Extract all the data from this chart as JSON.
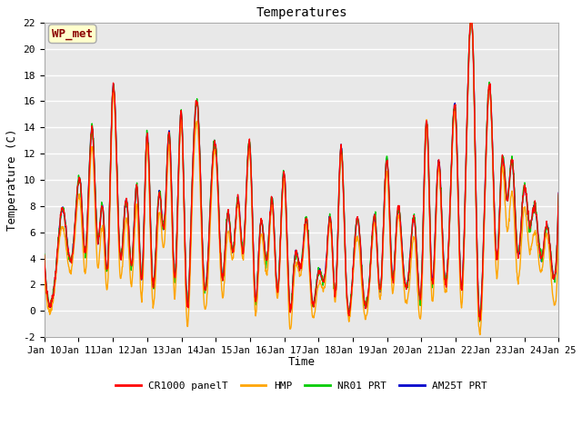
{
  "title": "Temperatures",
  "xlabel": "Time",
  "ylabel": "Temperature (C)",
  "ylim": [
    -2,
    22
  ],
  "yticks": [
    -2,
    0,
    2,
    4,
    6,
    8,
    10,
    12,
    14,
    16,
    18,
    20,
    22
  ],
  "x_labels": [
    "Jan 10",
    "Jan 11",
    "Jan 12",
    "Jan 13",
    "Jan 14",
    "Jan 15",
    "Jan 16",
    "Jan 17",
    "Jan 18",
    "Jan 19",
    "Jan 20",
    "Jan 21",
    "Jan 22",
    "Jan 23",
    "Jan 24",
    "Jan 25"
  ],
  "annotation_text": "WP_met",
  "annotation_color": "#8B0000",
  "annotation_bg": "#FFFFCC",
  "bg_color": "#E8E8E8",
  "series_colors": [
    "#FF0000",
    "#FFA500",
    "#00CC00",
    "#0000CC"
  ],
  "series_labels": [
    "CR1000 panelT",
    "HMP",
    "NR01 PRT",
    "AM25T PRT"
  ],
  "line_width": 1.0,
  "figsize": [
    6.4,
    4.8
  ],
  "dpi": 100,
  "base_keypoints_x": [
    0,
    0.15,
    0.35,
    0.55,
    0.7,
    0.85,
    1.05,
    1.2,
    1.4,
    1.55,
    1.7,
    1.85,
    2.0,
    2.2,
    2.4,
    2.55,
    2.7,
    2.85,
    3.0,
    3.15,
    3.35,
    3.5,
    3.65,
    3.8,
    4.0,
    4.15,
    4.3,
    4.5,
    4.65,
    4.8,
    5.0,
    5.2,
    5.35,
    5.5,
    5.65,
    5.8,
    6.0,
    6.15,
    6.3,
    6.5,
    6.65,
    6.8,
    7.0,
    7.15,
    7.3,
    7.5,
    7.65,
    7.8,
    8.0,
    8.2,
    8.35,
    8.5,
    8.65,
    8.8,
    9.0,
    9.15,
    9.3,
    9.5,
    9.65,
    9.8,
    10.0,
    10.15,
    10.3,
    10.5,
    10.65,
    10.8,
    11.0,
    11.15,
    11.3,
    11.5,
    11.65,
    11.8,
    12.0,
    12.15,
    12.3,
    12.5,
    12.65,
    12.8,
    13.0,
    13.2,
    13.35,
    13.5,
    13.65,
    13.8,
    14.0,
    14.15,
    14.3,
    14.5,
    14.65,
    14.8,
    15.0
  ],
  "base_keypoints_y": [
    4.0,
    0.5,
    3.5,
    7.8,
    4.5,
    5.0,
    9.8,
    4.5,
    14.0,
    5.5,
    8.0,
    3.5,
    17.0,
    4.5,
    8.5,
    3.5,
    9.5,
    2.5,
    13.5,
    2.5,
    9.0,
    6.5,
    13.5,
    2.5,
    15.0,
    1.0,
    8.5,
    14.5,
    2.5,
    5.5,
    12.5,
    2.5,
    7.5,
    4.5,
    8.5,
    4.5,
    12.5,
    1.0,
    6.5,
    4.0,
    8.5,
    1.5,
    10.5,
    0.5,
    4.0,
    3.5,
    7.0,
    1.0,
    3.0,
    3.0,
    7.0,
    1.5,
    12.5,
    2.5,
    3.0,
    7.0,
    1.5,
    3.0,
    7.0,
    1.5,
    11.5,
    2.5,
    7.5,
    2.5,
    3.5,
    7.0,
    2.0,
    14.5,
    2.5,
    11.5,
    3.5,
    5.5,
    15.0,
    2.0,
    11.5,
    20.5,
    1.5,
    4.5,
    17.0,
    4.0,
    11.5,
    8.5,
    11.5,
    4.5,
    9.5,
    6.5,
    8.0,
    4.0,
    6.5,
    3.5,
    9.0
  ],
  "hmp_offset_x": [
    0,
    0.15,
    0.35,
    0.55,
    0.7,
    0.85,
    1.05,
    1.2,
    1.4,
    1.55,
    1.7,
    1.85,
    2.0,
    2.2,
    2.4,
    2.55,
    2.7,
    2.85,
    3.0,
    3.15,
    3.35,
    3.5,
    3.65,
    3.8,
    4.0,
    4.15,
    4.3,
    4.5,
    4.65,
    4.8,
    5.0,
    5.2,
    5.35,
    5.5,
    5.65,
    5.8,
    6.0,
    6.15,
    6.3,
    6.5,
    6.65,
    6.8,
    7.0,
    7.15,
    7.3,
    7.5,
    7.65,
    7.8,
    8.0,
    8.2,
    8.35,
    8.5,
    8.65,
    8.8,
    9.0,
    9.15,
    9.3,
    9.5,
    9.65,
    9.8,
    10.0,
    10.15,
    10.3,
    10.5,
    10.65,
    10.8,
    11.0,
    11.15,
    11.3,
    11.5,
    11.65,
    11.8,
    12.0,
    12.15,
    12.3,
    12.5,
    12.65,
    12.8,
    13.0,
    13.2,
    13.35,
    13.5,
    13.65,
    13.8,
    14.0,
    14.15,
    14.3,
    14.5,
    14.65,
    14.8,
    15.0
  ],
  "hmp_offset_y": [
    -1.0,
    -0.5,
    -0.5,
    -1.5,
    -1.0,
    -0.5,
    -1.5,
    -1.5,
    -1.5,
    -2.0,
    -1.5,
    -1.5,
    -0.5,
    -1.5,
    -1.5,
    -1.5,
    -1.5,
    -1.5,
    -0.5,
    -1.5,
    -1.5,
    -1.5,
    -1.0,
    -1.5,
    -0.5,
    -1.5,
    -1.5,
    -1.5,
    -1.5,
    -1.5,
    -0.5,
    -1.5,
    -1.5,
    -0.5,
    -0.5,
    -0.5,
    -0.5,
    -1.0,
    -1.0,
    -1.0,
    -0.5,
    -0.5,
    -0.5,
    -1.5,
    -1.0,
    -0.5,
    -0.5,
    -1.0,
    -1.0,
    -0.5,
    -0.5,
    -0.5,
    -0.5,
    -0.5,
    -0.5,
    -1.5,
    -1.0,
    -0.5,
    -0.5,
    -0.5,
    -1.0,
    -1.0,
    -0.5,
    -1.0,
    -1.5,
    -1.5,
    -1.5,
    0.0,
    -1.5,
    -0.5,
    -1.0,
    -0.5,
    -0.5,
    -1.5,
    -0.5,
    0.0,
    -1.5,
    -1.0,
    0.0,
    -1.5,
    -0.5,
    -2.5,
    -2.5,
    -2.0,
    -1.5,
    -2.0,
    -2.0,
    -1.0,
    -0.5,
    -1.5,
    -3.0
  ]
}
